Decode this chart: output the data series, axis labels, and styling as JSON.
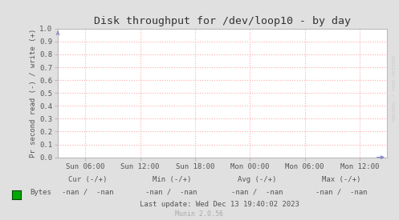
{
  "title": "Disk throughput for /dev/loop10 - by day",
  "ylabel": "Pr second read (-) / write (+)",
  "background_color": "#e0e0e0",
  "plot_bg_color": "#ffffff",
  "grid_color": "#ffaaaa",
  "border_color": "#bbbbbb",
  "title_color": "#333333",
  "text_color": "#555555",
  "yticks": [
    0.0,
    0.1,
    0.2,
    0.3,
    0.4,
    0.5,
    0.6,
    0.7,
    0.8,
    0.9,
    1.0
  ],
  "ylim": [
    0.0,
    1.0
  ],
  "xtick_labels": [
    "Sun 06:00",
    "Sun 12:00",
    "Sun 18:00",
    "Mon 00:00",
    "Mon 06:00",
    "Mon 12:00"
  ],
  "xtick_positions": [
    0.0833,
    0.25,
    0.4167,
    0.5833,
    0.75,
    0.9167
  ],
  "legend_label": "Bytes",
  "legend_color": "#00aa00",
  "cur_label": "Cur (-/+)",
  "min_label": "Min (-/+)",
  "avg_label": "Avg (-/+)",
  "max_label": "Max (-/+)",
  "cur_val": "-nan /  -nan",
  "min_val": "-nan /  -nan",
  "avg_val": "-nan /  -nan",
  "max_val": "-nan /  -nan",
  "last_update": "Last update: Wed Dec 13 19:40:02 2023",
  "munin_version": "Munin 2.0.56",
  "watermark": "RRDTOOL / TOBI OETIKER"
}
